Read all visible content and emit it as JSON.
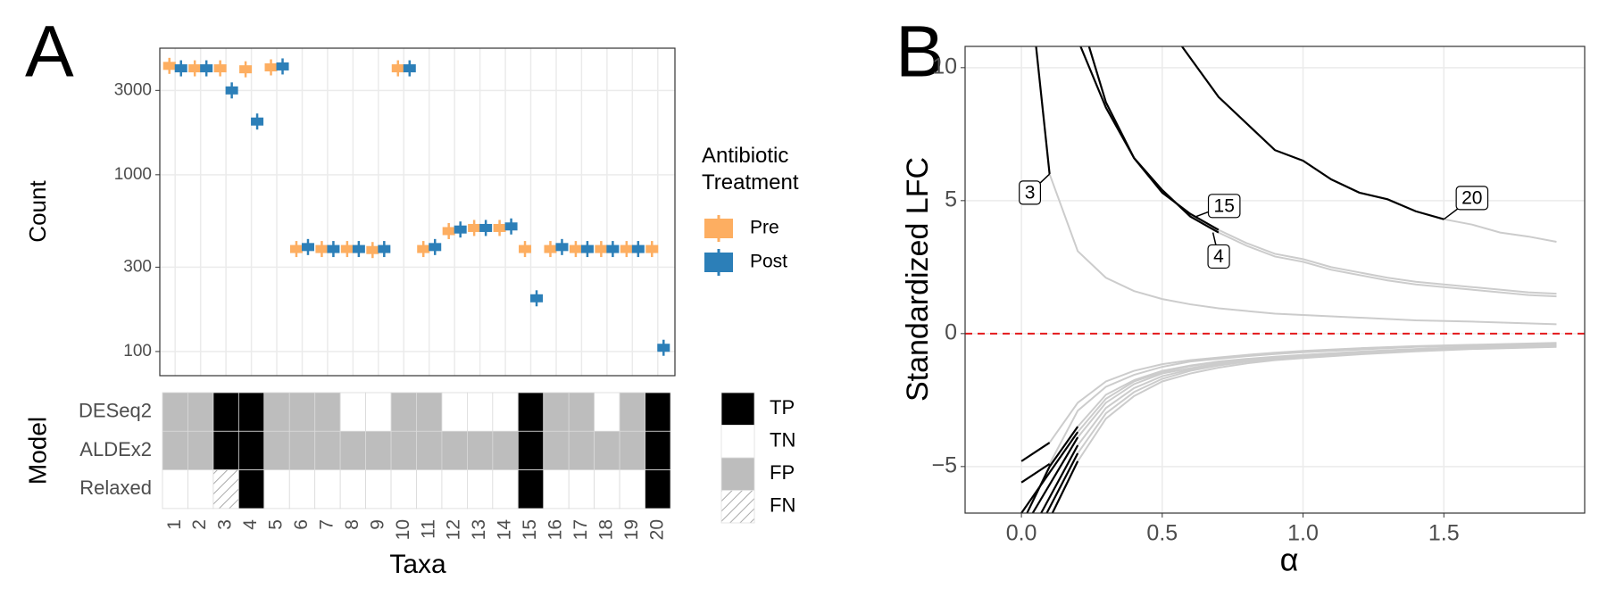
{
  "chart_data": [
    {
      "type": "dot",
      "panel": "A",
      "ylabel": "Count",
      "xlabel": "Taxa",
      "log_scale": true,
      "grid": true,
      "legend_title": "Antibiotic Treatment",
      "categories": [
        "1",
        "2",
        "3",
        "4",
        "5",
        "6",
        "7",
        "8",
        "9",
        "10",
        "11",
        "12",
        "13",
        "14",
        "15",
        "16",
        "17",
        "18",
        "19",
        "20"
      ],
      "series": [
        {
          "name": "Pre",
          "color": "#fdae61",
          "values": [
            4130,
            4000,
            4000,
            3950,
            4050,
            380,
            380,
            380,
            375,
            4000,
            380,
            480,
            500,
            500,
            380,
            380,
            380,
            380,
            380,
            380
          ]
        },
        {
          "name": "Post",
          "color": "#2c7fb8",
          "values": [
            4000,
            4000,
            3000,
            2000,
            4100,
            390,
            380,
            380,
            380,
            4000,
            390,
            490,
            500,
            510,
            200,
            390,
            380,
            380,
            380,
            105
          ]
        }
      ],
      "ylim": [
        73,
        5200
      ],
      "yticks": [
        100,
        300,
        1000,
        3000
      ]
    },
    {
      "type": "heatmap",
      "ylabel": "Model",
      "rows": [
        "DESeq2",
        "ALDEx2",
        "Relaxed"
      ],
      "cells": [
        [
          "FP",
          "FP",
          "TP",
          "TP",
          "FP",
          "FP",
          "FP",
          "TN",
          "TN",
          "FP",
          "FP",
          "TN",
          "TN",
          "TN",
          "TP",
          "FP",
          "FP",
          "TN",
          "FP",
          "TP"
        ],
        [
          "FP",
          "FP",
          "TP",
          "TP",
          "FP",
          "FP",
          "FP",
          "FP",
          "FP",
          "FP",
          "FP",
          "FP",
          "FP",
          "FP",
          "TP",
          "FP",
          "FP",
          "FP",
          "FP",
          "TP"
        ],
        [
          "TN",
          "TN",
          "FN",
          "TP",
          "TN",
          "TN",
          "TN",
          "TN",
          "TN",
          "TN",
          "TN",
          "TN",
          "TN",
          "TN",
          "TP",
          "TN",
          "TN",
          "TN",
          "TN",
          "TP"
        ]
      ],
      "legend": [
        {
          "name": "TP",
          "color": "#000000"
        },
        {
          "name": "TN",
          "color": "#ffffff"
        },
        {
          "name": "FP",
          "color": "#bdbdbd"
        },
        {
          "name": "FN",
          "color": "url(#hatch)"
        }
      ]
    },
    {
      "type": "line",
      "panel": "B",
      "ylabel": "Standardized LFC",
      "xlabel": "α",
      "grid": true,
      "xlim": [
        -0.2,
        2.0
      ],
      "ylim": [
        -6.75,
        10.8
      ],
      "xticks": [
        {
          "value": 0,
          "label": "0.0"
        },
        0.5,
        {
          "value": 1,
          "label": "1.0"
        },
        1.5
      ],
      "yticks": [
        {
          "value": -5,
          "label": "−5"
        },
        0,
        5,
        10
      ],
      "hline": {
        "y": 0,
        "color": "#e41a1c"
      },
      "series": [
        {
          "color": "#cccccc",
          "x": [
            0.1,
            0.2,
            0.3,
            0.4,
            0.5,
            0.6,
            0.7,
            0.8,
            0.9,
            1.0,
            1.2,
            1.4,
            1.6,
            1.9
          ],
          "values": [
            6.0,
            3.1,
            2.1,
            1.6,
            1.3,
            1.1,
            0.95,
            0.85,
            0.75,
            0.7,
            0.6,
            0.5,
            0.45,
            0.35
          ]
        },
        {
          "color": "#cccccc",
          "x": [
            0.7,
            0.8,
            0.9,
            1.0,
            1.1,
            1.2,
            1.3,
            1.4,
            1.5,
            1.6,
            1.7,
            1.8,
            1.9
          ],
          "values": [
            3.9,
            3.4,
            3.0,
            2.8,
            2.5,
            2.3,
            2.1,
            1.95,
            1.85,
            1.75,
            1.65,
            1.55,
            1.5
          ]
        },
        {
          "color": "#cccccc",
          "x": [
            0.7,
            0.8,
            0.9,
            1.0,
            1.1,
            1.2,
            1.3,
            1.4,
            1.5,
            1.6,
            1.7,
            1.8,
            1.9
          ],
          "values": [
            3.8,
            3.3,
            2.9,
            2.7,
            2.4,
            2.2,
            2.0,
            1.85,
            1.75,
            1.65,
            1.55,
            1.45,
            1.4
          ]
        },
        {
          "color": "#cccccc",
          "x": [
            1.5,
            1.6,
            1.7,
            1.8,
            1.9
          ],
          "values": [
            4.3,
            4.1,
            3.8,
            3.65,
            3.45
          ]
        },
        {
          "color": "#cccccc",
          "x": [
            0.1,
            0.2,
            0.3,
            0.4,
            0.5,
            0.6,
            0.7,
            0.8,
            0.9,
            1.0,
            1.2,
            1.4,
            1.6,
            1.9
          ],
          "values": [
            -4.1,
            -2.6,
            -1.8,
            -1.4,
            -1.15,
            -1.0,
            -0.9,
            -0.8,
            -0.72,
            -0.65,
            -0.55,
            -0.47,
            -0.42,
            -0.35
          ]
        },
        {
          "color": "#cccccc",
          "x": [
            0.1,
            0.2,
            0.3,
            0.4,
            0.5,
            0.6,
            0.7,
            0.8,
            0.9,
            1.0,
            1.2,
            1.4,
            1.6,
            1.9
          ],
          "values": [
            -4.9,
            -2.9,
            -2.0,
            -1.55,
            -1.25,
            -1.05,
            -0.95,
            -0.85,
            -0.77,
            -0.7,
            -0.6,
            -0.5,
            -0.45,
            -0.38
          ]
        },
        {
          "color": "#cccccc",
          "x": [
            0.2,
            0.3,
            0.4,
            0.5,
            0.6,
            0.7,
            0.8,
            0.9,
            1.0,
            1.2,
            1.4,
            1.6,
            1.9
          ],
          "values": [
            -3.5,
            -2.3,
            -1.75,
            -1.4,
            -1.2,
            -1.05,
            -0.95,
            -0.87,
            -0.8,
            -0.68,
            -0.58,
            -0.5,
            -0.42
          ]
        },
        {
          "color": "#cccccc",
          "x": [
            0.2,
            0.3,
            0.4,
            0.5,
            0.6,
            0.7,
            0.8,
            0.9,
            1.0,
            1.2,
            1.4,
            1.6,
            1.9
          ],
          "values": [
            -3.9,
            -2.6,
            -1.9,
            -1.5,
            -1.3,
            -1.12,
            -1.0,
            -0.9,
            -0.83,
            -0.7,
            -0.6,
            -0.52,
            -0.44
          ]
        },
        {
          "color": "#cccccc",
          "x": [
            0.2,
            0.3,
            0.4,
            0.5,
            0.6,
            0.7,
            0.8,
            0.9,
            1.0,
            1.2,
            1.4,
            1.6,
            1.9
          ],
          "values": [
            -4.2,
            -2.8,
            -2.05,
            -1.6,
            -1.35,
            -1.15,
            -1.03,
            -0.93,
            -0.85,
            -0.72,
            -0.62,
            -0.54,
            -0.46
          ]
        },
        {
          "color": "#cccccc",
          "x": [
            0.2,
            0.3,
            0.4,
            0.5,
            0.6,
            0.7,
            0.8,
            0.9,
            1.0,
            1.2,
            1.4,
            1.6,
            1.9
          ],
          "values": [
            -4.5,
            -3.0,
            -2.2,
            -1.7,
            -1.4,
            -1.2,
            -1.06,
            -0.96,
            -0.88,
            -0.75,
            -0.64,
            -0.56,
            -0.48
          ]
        },
        {
          "color": "#cccccc",
          "x": [
            0.2,
            0.3,
            0.4,
            0.5,
            0.6,
            0.7,
            0.8,
            0.9,
            1.0,
            1.2,
            1.4,
            1.6,
            1.9
          ],
          "values": [
            -4.8,
            -3.2,
            -2.35,
            -1.8,
            -1.5,
            -1.28,
            -1.12,
            -1.0,
            -0.92,
            -0.78,
            -0.67,
            -0.58,
            -0.5
          ]
        },
        {
          "color": "#cccccc",
          "x": [
            0.2,
            0.3,
            0.4,
            0.5,
            0.6,
            0.7,
            0.8,
            0.9,
            1.0,
            1.2,
            1.4,
            1.6,
            1.9
          ],
          "values": [
            -3.7,
            -2.45,
            -1.8,
            -1.45,
            -1.22,
            -1.07,
            -0.96,
            -0.88,
            -0.81,
            -0.69,
            -0.59,
            -0.51,
            -0.43
          ]
        },
        {
          "color": "#000000",
          "x": [
            0.05,
            0.1
          ],
          "values": [
            11,
            6.0
          ]
        },
        {
          "color": "#000000",
          "x": [
            0.24,
            0.3,
            0.4,
            0.5,
            0.6,
            0.7
          ],
          "values": [
            10.8,
            8.7,
            6.6,
            5.3,
            4.5,
            3.9
          ]
        },
        {
          "color": "#000000",
          "x": [
            0.21,
            0.3,
            0.4,
            0.5,
            0.6,
            0.7
          ],
          "values": [
            10.8,
            8.5,
            6.6,
            5.4,
            4.4,
            3.8
          ]
        },
        {
          "color": "#000000",
          "x": [
            0.57,
            0.7,
            0.8,
            0.9,
            1.0,
            1.1,
            1.2,
            1.3,
            1.4,
            1.5
          ],
          "values": [
            10.8,
            8.9,
            7.9,
            6.9,
            6.5,
            5.8,
            5.3,
            5.05,
            4.6,
            4.3
          ]
        },
        {
          "color": "#000000",
          "x": [
            0.0,
            0.1
          ],
          "values": [
            -4.8,
            -4.1
          ]
        },
        {
          "color": "#000000",
          "x": [
            0.0,
            0.1
          ],
          "values": [
            -5.6,
            -4.9
          ]
        },
        {
          "color": "#000000",
          "x": [
            0.02,
            0.1,
            0.2
          ],
          "values": [
            -6.75,
            -5.0,
            -3.5
          ]
        },
        {
          "color": "#000000",
          "x": [
            0.04,
            0.2
          ],
          "values": [
            -6.75,
            -3.9
          ]
        },
        {
          "color": "#000000",
          "x": [
            0.07,
            0.2
          ],
          "values": [
            -6.75,
            -4.2
          ]
        },
        {
          "color": "#000000",
          "x": [
            0.09,
            0.2
          ],
          "values": [
            -6.75,
            -4.5
          ]
        },
        {
          "color": "#000000",
          "x": [
            0.11,
            0.2
          ],
          "values": [
            -6.75,
            -4.8
          ]
        },
        {
          "color": "#000000",
          "x": [
            0.0,
            0.2
          ],
          "values": [
            -6.75,
            -3.7
          ]
        }
      ],
      "annotations": [
        {
          "text": "3",
          "x": 0.03,
          "y": 5.3,
          "target": [
            0.1,
            6.0
          ]
        },
        {
          "text": "15",
          "x": 0.72,
          "y": 4.8,
          "target": [
            0.62,
            4.4
          ]
        },
        {
          "text": "4",
          "x": 0.7,
          "y": 2.9,
          "target": [
            0.68,
            3.8
          ]
        },
        {
          "text": "20",
          "x": 1.6,
          "y": 5.1,
          "target": [
            1.5,
            4.3
          ]
        }
      ]
    }
  ]
}
